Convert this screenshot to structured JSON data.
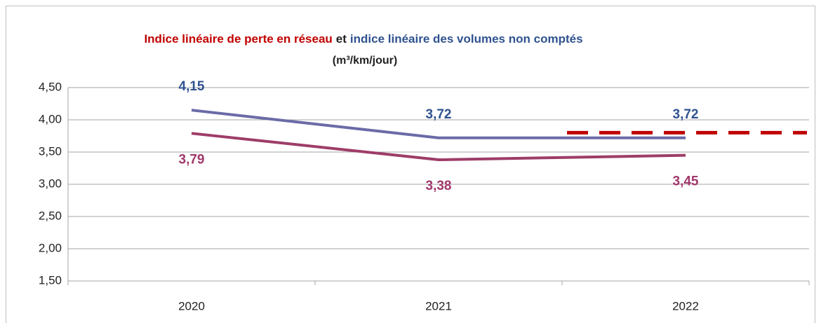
{
  "chart_data": {
    "type": "line",
    "title": [
      "Indice linéaire de perte en réseau",
      "et",
      "indice linéaire des volumes non comptés"
    ],
    "title_colors": [
      "#c00000",
      "#222222",
      "#2f528f"
    ],
    "subtitle": "(m³/km/jour)",
    "categories": [
      "2020",
      "2021",
      "2022"
    ],
    "series": [
      {
        "name": "indice linéaire des volumes non comptés",
        "color": "#6b6ba8",
        "label_color": "#2f528f",
        "label_position": "above",
        "values": [
          4.15,
          3.72,
          3.72
        ],
        "value_labels": [
          "4,15",
          "3,72",
          "3,72"
        ]
      },
      {
        "name": "Indice linéaire de perte en réseau",
        "color": "#9e3d68",
        "label_color": "#a0386a",
        "label_position": "below",
        "values": [
          3.79,
          3.38,
          3.45
        ],
        "value_labels": [
          "3,79",
          "3,38",
          "3,45"
        ]
      }
    ],
    "reference_line": {
      "value": 3.8,
      "color": "#c00000",
      "dashed": true
    },
    "ylim": [
      1.5,
      4.5
    ],
    "yticks": [
      {
        "value": 1.5,
        "label": "1,50"
      },
      {
        "value": 2.0,
        "label": "2,00"
      },
      {
        "value": 2.5,
        "label": "2,50"
      },
      {
        "value": 3.0,
        "label": "3,00"
      },
      {
        "value": 3.5,
        "label": "3,50"
      },
      {
        "value": 4.0,
        "label": "4,00"
      },
      {
        "value": 4.5,
        "label": "4,50"
      }
    ],
    "grid": true
  }
}
